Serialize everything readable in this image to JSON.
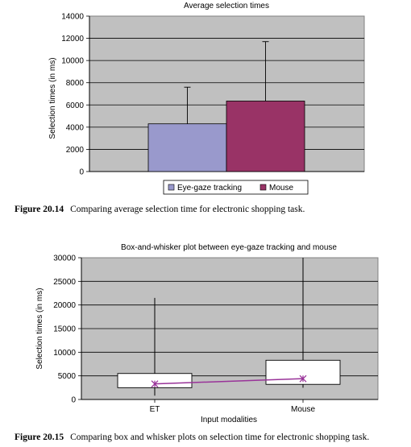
{
  "chart_data": [
    {
      "type": "bar",
      "title": "Average selection times",
      "ylabel": "Selection times (in ms)",
      "ylim": [
        0,
        14000
      ],
      "yticks": [
        0,
        2000,
        4000,
        6000,
        8000,
        10000,
        12000,
        14000
      ],
      "series": [
        {
          "name": "Eye-gaze tracking",
          "value": 4300,
          "error_upper": 7600,
          "color": "#9999cc"
        },
        {
          "name": "Mouse",
          "value": 6350,
          "error_upper": 11700,
          "color": "#993366"
        }
      ],
      "grid": true,
      "legend": "bottom",
      "plot_bg": "#c0c0c0"
    },
    {
      "type": "box",
      "title": "Box-and-whisker plot between eye-gaze tracking and mouse",
      "xlabel": "Input modalities",
      "ylabel": "Selection times (in ms)",
      "ylim": [
        0,
        30000
      ],
      "yticks": [
        0,
        5000,
        10000,
        15000,
        20000,
        25000,
        30000
      ],
      "categories": [
        "ET",
        "Mouse"
      ],
      "boxes": [
        {
          "category": "ET",
          "min": 800,
          "q1": 2500,
          "median": 3300,
          "q3": 5500,
          "max": 21500,
          "mean": 3300
        },
        {
          "category": "Mouse",
          "min": 2500,
          "q1": 3200,
          "median": 4400,
          "q3": 8300,
          "max": 30000,
          "mean": 4400
        }
      ],
      "mean_line_color": "#993399",
      "grid": true,
      "plot_bg": "#c0c0c0"
    }
  ],
  "captions": [
    {
      "label": "Figure 20.14",
      "text": "Comparing average selection time for electronic shopping task."
    },
    {
      "label": "Figure 20.15",
      "text": "Comparing box and whisker plots on selection time for electronic shopping task."
    }
  ]
}
